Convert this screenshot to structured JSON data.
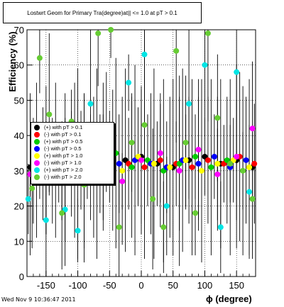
{
  "title": "Lostwrt Geom for Primary Tra(degree)at|| <= 1.0 at pT > 0.1",
  "footer_timestamp": "Wed Nov  9 10:36:47 2011",
  "chart_data": {
    "type": "scatter",
    "title": "Lostwrt Geom for Primary Tra(degree)at|| <= 1.0 at pT > 0.1",
    "xlabel": "ϕ (degree)",
    "ylabel": "Efficiency (%)",
    "xlim": [
      -180,
      180
    ],
    "ylim": [
      0,
      70
    ],
    "xticks": [
      -150,
      -100,
      -50,
      0,
      50,
      100,
      150
    ],
    "yticks": [
      0,
      10,
      20,
      30,
      40,
      50,
      60,
      70
    ],
    "grid": true,
    "legend_placement": "left",
    "series": [
      {
        "name": "(+) with pT > 0.1",
        "color": "#000000",
        "x": [
          -175,
          -150,
          -125,
          -100,
          -75,
          -50,
          -25,
          0,
          25,
          50,
          75,
          100,
          125,
          150,
          175
        ],
        "y": [
          31,
          33,
          30,
          32,
          31,
          34,
          33,
          34,
          32,
          31,
          33,
          34,
          32,
          33,
          31
        ]
      },
      {
        "name": "(-) with pT > 0.1",
        "color": "#ff0000",
        "x": [
          -170,
          -145,
          -120,
          -95,
          -70,
          -45,
          -20,
          5,
          30,
          55,
          80,
          105,
          130,
          155,
          178
        ],
        "y": [
          30,
          32,
          31,
          33,
          32,
          33,
          32,
          31,
          33,
          32,
          31,
          33,
          32,
          34,
          32
        ]
      },
      {
        "name": "(+) with pT > 0.5",
        "color": "#00cc00",
        "x": [
          -165,
          -140,
          -115,
          -90,
          -65,
          -40,
          -15,
          10,
          35,
          60,
          85,
          110,
          135,
          160
        ],
        "y": [
          33,
          30,
          34,
          31,
          32,
          35,
          31,
          33,
          30,
          32,
          34,
          31,
          33,
          30
        ]
      },
      {
        "name": "(-) with pT > 0.5",
        "color": "#0000ff",
        "x": [
          -160,
          -135,
          -110,
          -85,
          -60,
          -35,
          -10,
          15,
          40,
          65,
          90,
          115,
          140,
          165
        ],
        "y": [
          31,
          33,
          32,
          30,
          34,
          32,
          33,
          32,
          31,
          33,
          32,
          34,
          31,
          33
        ]
      },
      {
        "name": "(+) with pT > 1.0",
        "color": "#ffff00",
        "x": [
          -155,
          -130,
          -105,
          -80,
          -55,
          -30,
          -5,
          20,
          45,
          70,
          95,
          120,
          145,
          170
        ],
        "y": [
          32,
          30,
          33,
          31,
          32,
          30,
          34,
          32,
          31,
          33,
          30,
          32,
          33,
          31
        ]
      },
      {
        "name": "(-) with pT > 1.0",
        "color": "#ff00ff",
        "x": [
          -175,
          -150,
          -120,
          -90,
          -60,
          -30,
          0,
          30,
          60,
          90,
          120,
          150,
          175
        ],
        "y": [
          29,
          28,
          36,
          30,
          31,
          27,
          33,
          35,
          30,
          36,
          29,
          34,
          42
        ]
      },
      {
        "name": "(+) with pT > 2.0",
        "color": "#00e5e5",
        "x": [
          -178,
          -150,
          -120,
          -100,
          -80,
          -55,
          -20,
          5,
          40,
          75,
          100,
          125,
          150,
          170
        ],
        "y": [
          22,
          16,
          19,
          13,
          49,
          43,
          55,
          63,
          20,
          49,
          60,
          14,
          58,
          24
        ]
      },
      {
        "name": "(-) with pT > 2.0",
        "color": "#66cc33",
        "x": [
          -172,
          -160,
          -145,
          -125,
          -110,
          -90,
          -68,
          -48,
          -35,
          -15,
          5,
          18,
          35,
          55,
          70,
          85,
          105,
          120,
          140,
          160,
          175
        ],
        "y": [
          25,
          62,
          46,
          18,
          44,
          26,
          69,
          70,
          14,
          38,
          43,
          22,
          14,
          64,
          38,
          18,
          69,
          45,
          32,
          30,
          22
        ]
      }
    ]
  }
}
